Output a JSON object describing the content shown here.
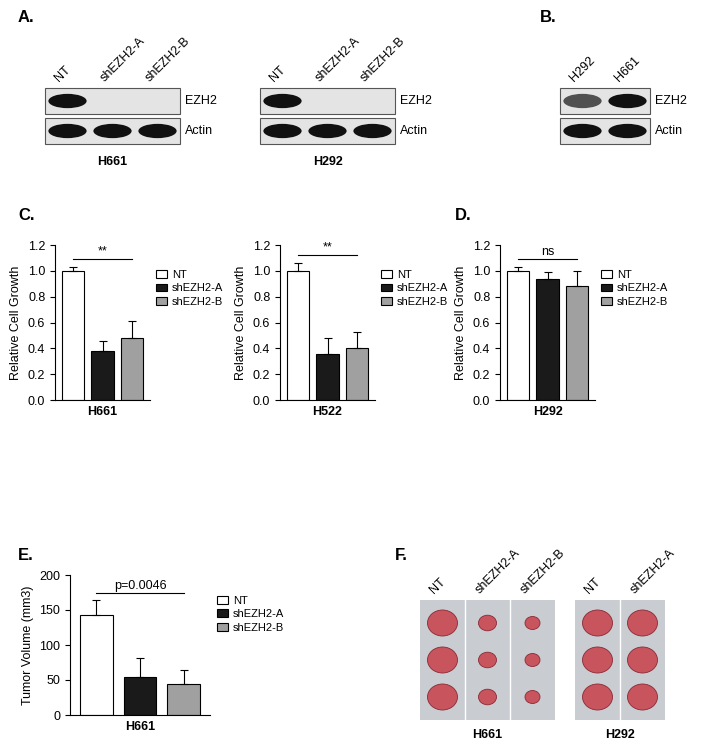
{
  "panel_labels": [
    "A.",
    "B.",
    "C.",
    "D.",
    "E.",
    "F."
  ],
  "blots": [
    {
      "lanes": [
        "NT",
        "shEZH2-A",
        "shEZH2-B"
      ],
      "bands": [
        {
          "name": "EZH2",
          "signal": [
            1,
            0,
            0
          ]
        },
        {
          "name": "Actin",
          "signal": [
            1,
            1,
            1
          ]
        }
      ],
      "caption": "H661"
    },
    {
      "lanes": [
        "NT",
        "shEZH2-A",
        "shEZH2-B"
      ],
      "bands": [
        {
          "name": "EZH2",
          "signal": [
            1,
            0,
            0
          ]
        },
        {
          "name": "Actin",
          "signal": [
            1,
            1,
            1
          ]
        }
      ],
      "caption": "H292"
    },
    {
      "lanes": [
        "H292",
        "H661"
      ],
      "bands": [
        {
          "name": "EZH2",
          "signal": [
            0.6,
            1
          ]
        },
        {
          "name": "Actin",
          "signal": [
            1,
            1
          ]
        }
      ]
    }
  ],
  "chart_data": [
    {
      "type": "bar",
      "categories": [
        "NT",
        "shEZH2-A",
        "shEZH2-B"
      ],
      "values": [
        1.0,
        0.38,
        0.48
      ],
      "errors": [
        0.03,
        0.08,
        0.13
      ],
      "colors": [
        "#ffffff",
        "#1a1a1a",
        "#a0a0a0"
      ],
      "y_label": "Relative Cell Growth",
      "x_label": "H661",
      "ylim": [
        0,
        1.2
      ],
      "yticks": [
        {
          "value": 0,
          "label": "0.0"
        },
        {
          "value": 0.2,
          "label": "0.2"
        },
        {
          "value": 0.4,
          "label": "0.4"
        },
        {
          "value": 0.6,
          "label": "0.6"
        },
        {
          "value": 0.8,
          "label": "0.8"
        },
        {
          "value": 1.0,
          "label": "1.0"
        },
        {
          "value": 1.2,
          "label": "1.2"
        }
      ],
      "legend": "right",
      "tick_labels": "y",
      "annotation": "**"
    },
    {
      "type": "bar",
      "categories": [
        "NT",
        "shEZH2-A",
        "shEZH2-B"
      ],
      "values": [
        1.0,
        0.36,
        0.4
      ],
      "errors": [
        0.06,
        0.12,
        0.13
      ],
      "colors": [
        "#ffffff",
        "#1a1a1a",
        "#a0a0a0"
      ],
      "y_label": "Relative Cell Growth",
      "x_label": "H522",
      "ylim": [
        0,
        1.2
      ],
      "yticks": [
        {
          "value": 0,
          "label": "0.0"
        },
        {
          "value": 0.2,
          "label": "0.2"
        },
        {
          "value": 0.4,
          "label": "0.4"
        },
        {
          "value": 0.6,
          "label": "0.6"
        },
        {
          "value": 0.8,
          "label": "0.8"
        },
        {
          "value": 1.0,
          "label": "1.0"
        },
        {
          "value": 1.2,
          "label": "1.2"
        }
      ],
      "legend": "right",
      "tick_labels": "y",
      "annotation": "**"
    },
    {
      "type": "bar",
      "categories": [
        "NT",
        "shEZH2-A",
        "shEZH2-B"
      ],
      "values": [
        1.0,
        0.94,
        0.88
      ],
      "errors": [
        0.03,
        0.05,
        0.12
      ],
      "colors": [
        "#ffffff",
        "#1a1a1a",
        "#a0a0a0"
      ],
      "y_label": "Relative Cell Growth",
      "x_label": "H292",
      "ylim": [
        0,
        1.2
      ],
      "yticks": [
        {
          "value": 0,
          "label": "0.0"
        },
        {
          "value": 0.2,
          "label": "0.2"
        },
        {
          "value": 0.4,
          "label": "0.4"
        },
        {
          "value": 0.6,
          "label": "0.6"
        },
        {
          "value": 0.8,
          "label": "0.8"
        },
        {
          "value": 1.0,
          "label": "1.0"
        },
        {
          "value": 1.2,
          "label": "1.2"
        }
      ],
      "legend": "right",
      "tick_labels": "y",
      "annotation": "ns"
    },
    {
      "type": "bar",
      "categories": [
        "NT",
        "shEZH2-A",
        "shEZH2-B"
      ],
      "values": [
        143,
        55,
        44
      ],
      "errors": [
        21,
        27,
        20
      ],
      "colors": [
        "#ffffff",
        "#1a1a1a",
        "#a0a0a0"
      ],
      "y_label": "Tumor Volume (mm3)",
      "x_label": "H661",
      "ylim": [
        0,
        200
      ],
      "yticks": [
        0,
        50,
        100,
        150,
        200
      ],
      "legend": "right",
      "tick_labels": "y",
      "annotation": "p=0.0046"
    }
  ],
  "photos": {
    "groups": [
      {
        "caption": "H661",
        "lanes": [
          "NT",
          "shEZH2-A",
          "shEZH2-B"
        ],
        "sizes": [
          1.0,
          0.6,
          0.5
        ]
      },
      {
        "caption": "H292",
        "lanes": [
          "NT",
          "shEZH2-A"
        ],
        "sizes": [
          1.0,
          1.0
        ]
      }
    ]
  }
}
